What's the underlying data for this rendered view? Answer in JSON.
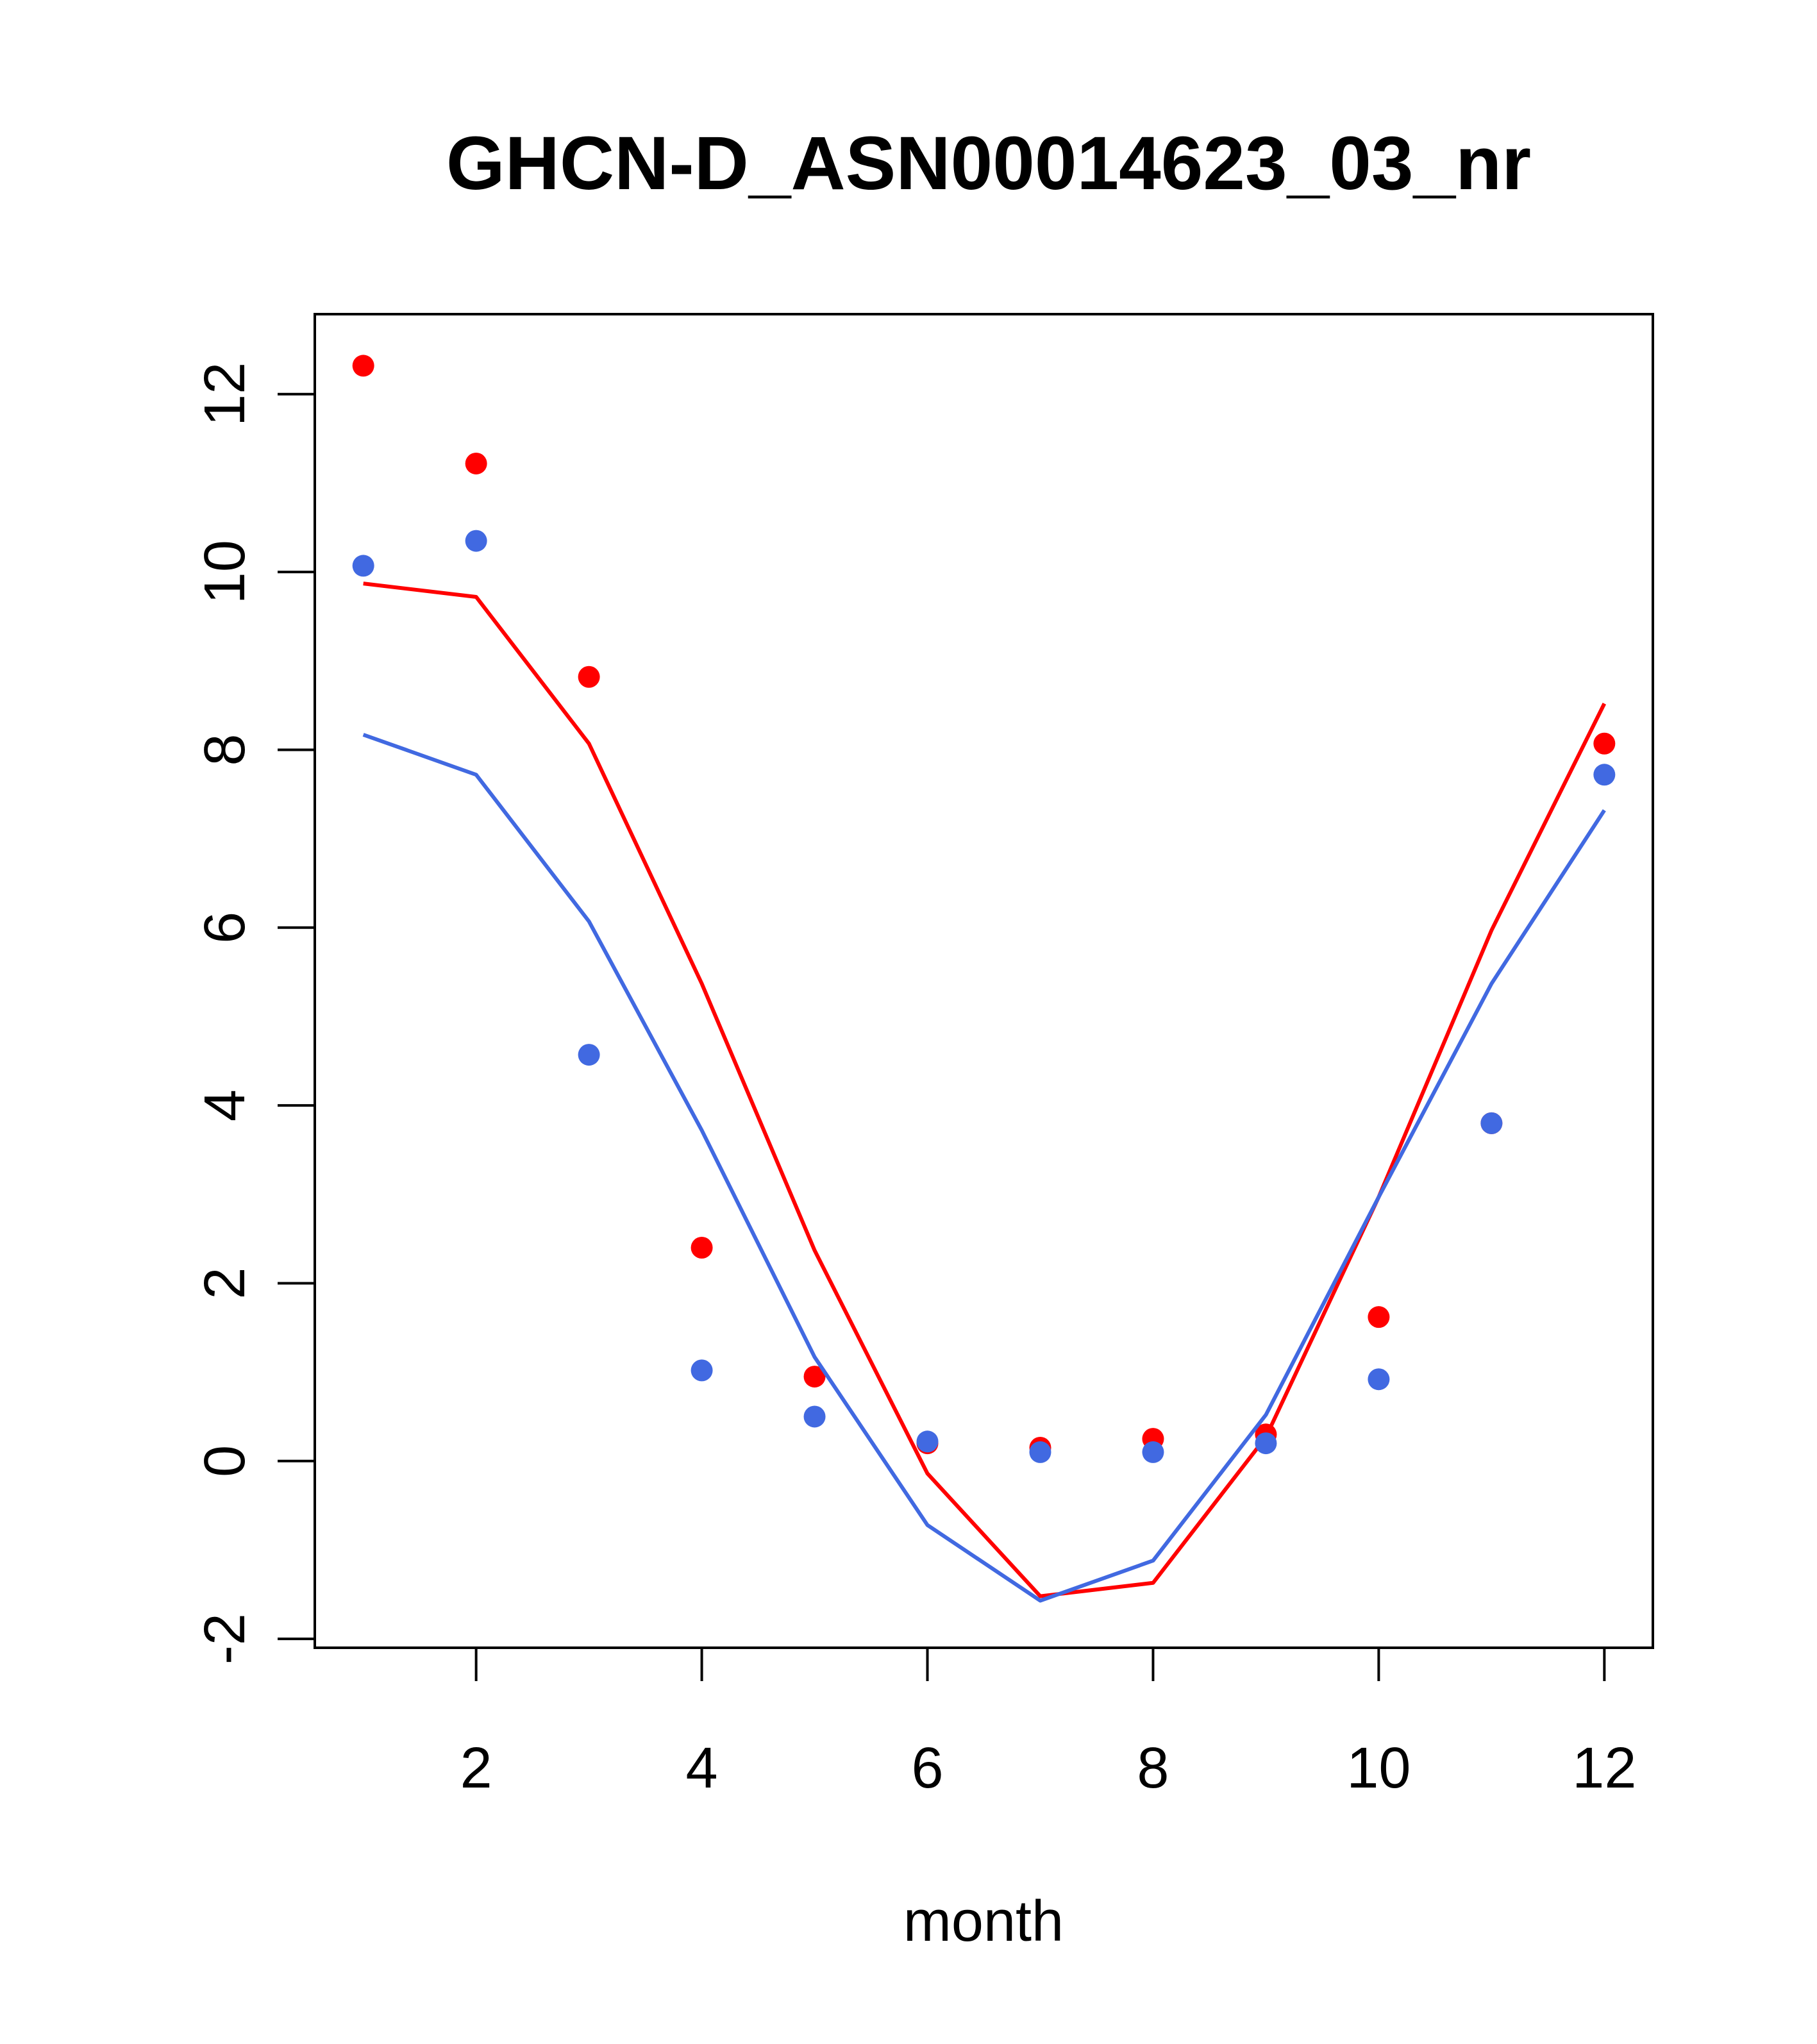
{
  "chart_data": {
    "type": "line",
    "title": "GHCN-D_ASN00014623_03_nr",
    "xlabel": "month",
    "ylabel": "",
    "xlim": [
      0.57,
      12.43
    ],
    "ylim": [
      -2.1,
      12.9
    ],
    "x_ticks": [
      2,
      4,
      6,
      8,
      10,
      12
    ],
    "y_ticks": [
      -2,
      0,
      2,
      4,
      6,
      8,
      10,
      12
    ],
    "x_tick_labels": [
      "2",
      "4",
      "6",
      "8",
      "10",
      "12"
    ],
    "y_tick_labels": [
      "-2",
      "0",
      "2",
      "4",
      "6",
      "8",
      "10",
      "12"
    ],
    "grid": false,
    "legend": "none",
    "x": [
      1,
      2,
      3,
      4,
      5,
      6,
      7,
      8,
      9,
      10,
      11,
      12
    ],
    "series": [
      {
        "color": "#ff0000",
        "line_values": [
          9.87,
          9.72,
          8.07,
          5.37,
          2.37,
          -0.14,
          -1.52,
          -1.37,
          0.27,
          2.97,
          5.97,
          8.52
        ],
        "point_values": [
          12.32,
          11.22,
          8.82,
          2.4,
          0.95,
          0.2,
          0.15,
          0.25,
          0.3,
          1.62,
          3.8,
          8.07
        ]
      },
      {
        "color": "#4169e1",
        "line_values": [
          8.17,
          7.72,
          6.07,
          3.72,
          1.17,
          -0.72,
          -1.57,
          -1.12,
          0.52,
          2.97,
          5.37,
          7.32
        ],
        "point_values": [
          10.07,
          10.35,
          4.57,
          1.02,
          0.5,
          0.22,
          0.1,
          0.1,
          0.2,
          0.92,
          3.8,
          7.72
        ]
      }
    ]
  }
}
